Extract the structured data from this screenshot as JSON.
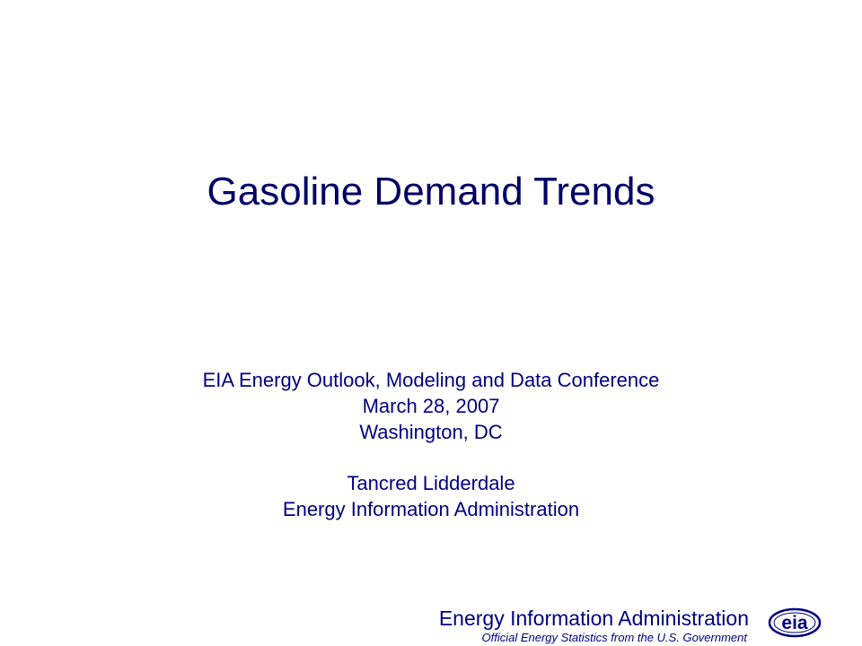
{
  "slide": {
    "title": "Gasoline Demand Trends",
    "subtitle_lines": [
      "EIA Energy Outlook, Modeling and Data Conference",
      "March 28, 2007",
      "Washington, DC"
    ],
    "presenter_lines": [
      "Tancred Lidderdale",
      "Energy Information Administration"
    ]
  },
  "footer": {
    "organization": "Energy Information Administration",
    "tagline": "Official Energy Statistics from the U.S. Government",
    "logo_text": "eia",
    "logo_icon": "eia-logo-icon"
  },
  "colors": {
    "title": "#000066",
    "text": "#000080",
    "background": "#ffffff"
  }
}
